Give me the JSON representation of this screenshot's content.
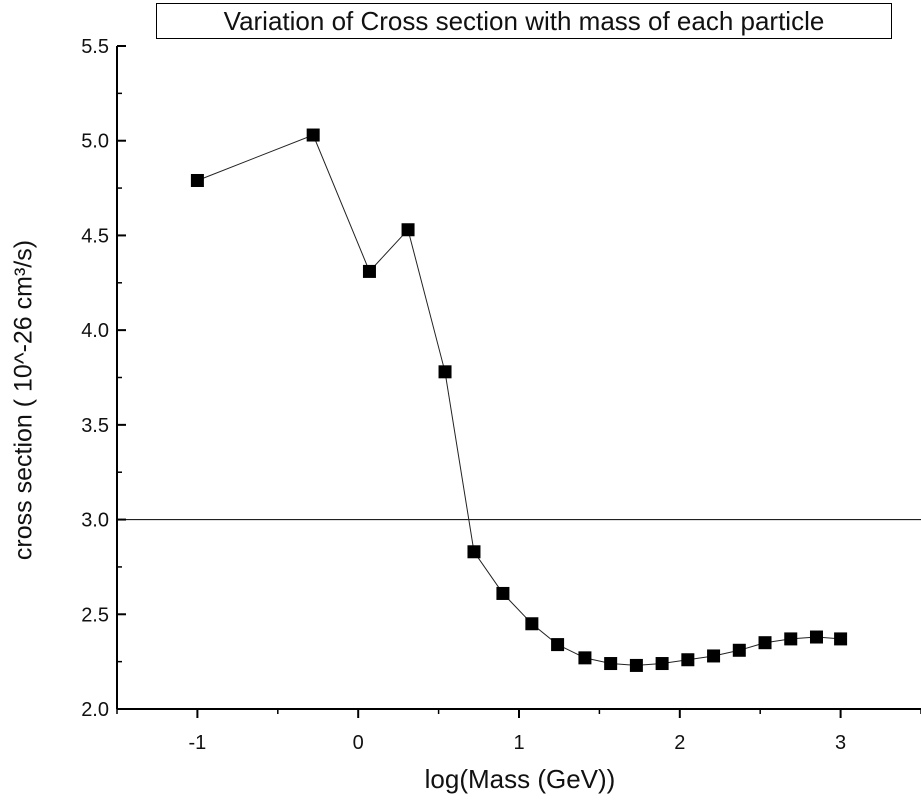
{
  "chart_data": {
    "type": "line",
    "title": "Variation of Cross section with mass of each particle",
    "xlabel": "log(Mass (GeV))",
    "ylabel": "cross section ( 10^-26 cm³/s)",
    "xlim": [
      -1.5,
      3.5
    ],
    "ylim": [
      2.0,
      5.5
    ],
    "x_ticks": [
      -1,
      0,
      1,
      2,
      3
    ],
    "y_ticks": [
      2.0,
      2.5,
      3.0,
      3.5,
      4.0,
      4.5,
      5.0,
      5.5
    ],
    "x_tick_labels": [
      "-1",
      "0",
      "1",
      "2",
      "3"
    ],
    "y_tick_labels": [
      "2.0",
      "2.5",
      "3.0",
      "3.5",
      "4.0",
      "4.5",
      "5.0",
      "5.5"
    ],
    "reference_line": 3.0,
    "marker": "square",
    "grid": false,
    "series": [
      {
        "x": [
          -1.0,
          -0.28,
          0.07,
          0.31,
          0.54,
          0.72,
          0.9,
          1.08,
          1.24,
          1.41,
          1.57,
          1.73,
          1.89,
          2.05,
          2.21,
          2.37,
          2.53,
          2.69,
          2.85,
          3.0
        ],
        "y": [
          4.79,
          5.03,
          4.31,
          4.53,
          3.78,
          2.83,
          2.61,
          2.45,
          2.34,
          2.27,
          2.24,
          2.23,
          2.24,
          2.26,
          2.28,
          2.31,
          2.35,
          2.37,
          2.38,
          2.37
        ]
      }
    ]
  }
}
